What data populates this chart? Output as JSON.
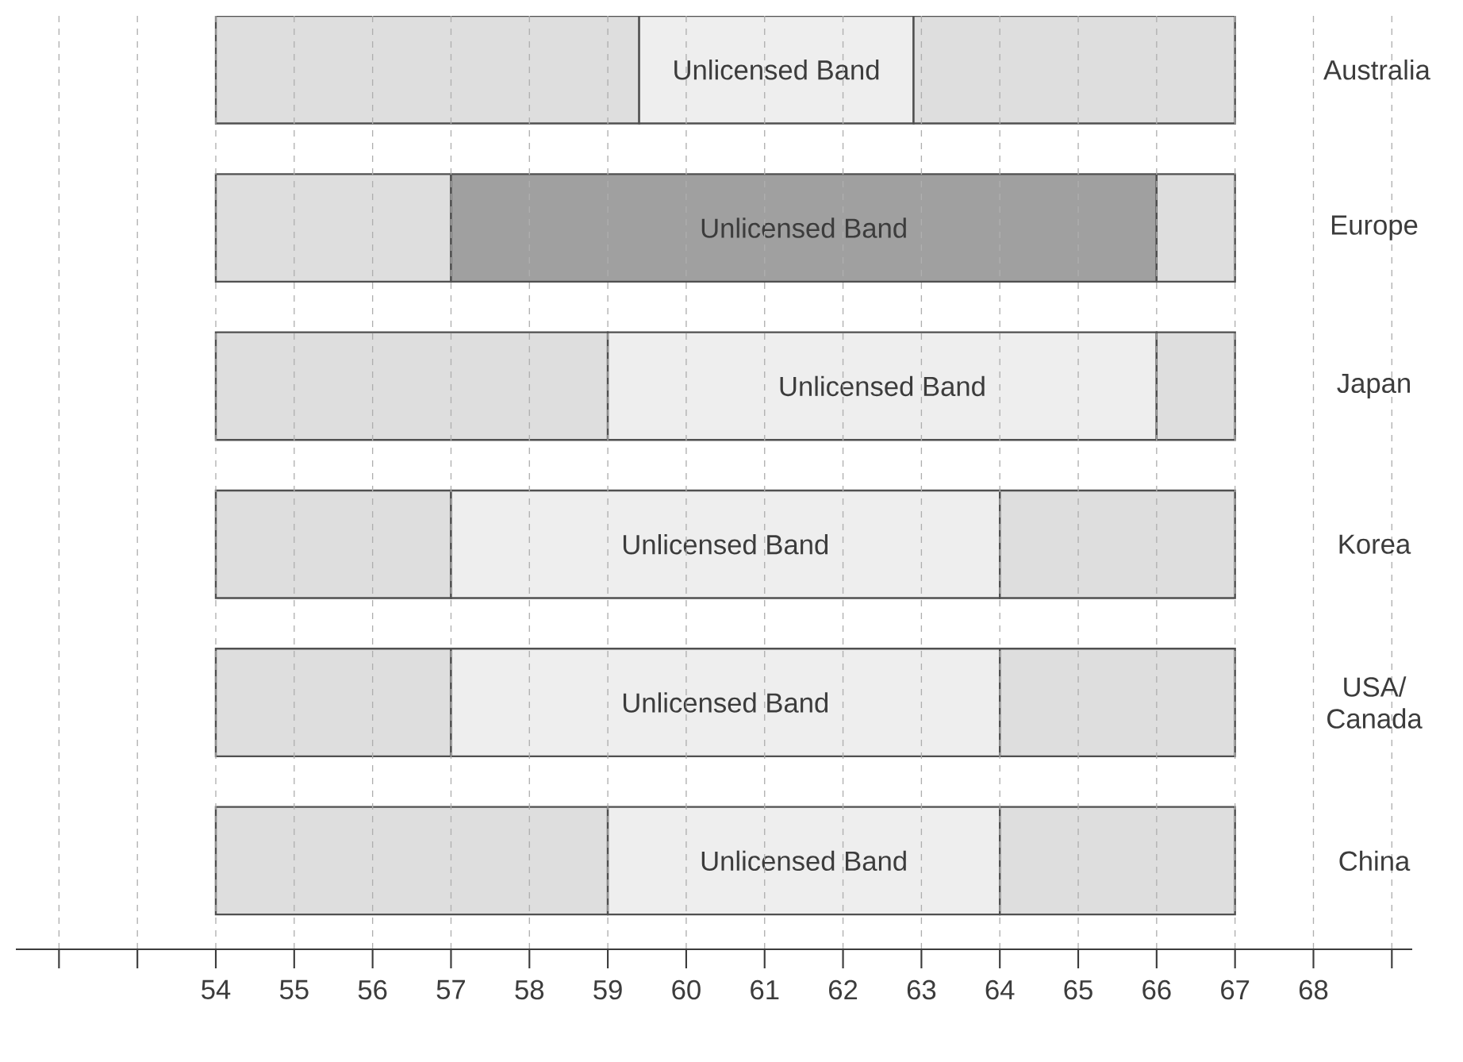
{
  "chart_data": {
    "type": "bar",
    "orientation": "horizontal",
    "categories": [
      "Australia",
      "Europe",
      "Japan",
      "Korea",
      "USA/ Canada",
      "China"
    ],
    "series": [
      {
        "color": "#dedede",
        "base": [
          54,
          54,
          54,
          54,
          54,
          54
        ],
        "values": [
          5.4,
          3,
          5,
          3,
          3,
          5
        ]
      },
      {
        "base": [
          59.4,
          57,
          59,
          57,
          57,
          59
        ],
        "colors": [
          "#eeeeee",
          "#a0a0a0",
          "#eeeeee",
          "#eeeeee",
          "#eeeeee",
          "#eeeeee"
        ],
        "values": [
          3.5,
          9,
          7,
          7,
          7,
          5
        ],
        "value_labels": [
          "Unlicensed Band",
          "Unlicensed Band",
          "Unlicensed Band",
          "Unlicensed Band",
          "Unlicensed Band",
          "Unlicensed Band"
        ]
      },
      {
        "color": "#dedede",
        "base": [
          62.9,
          66,
          66,
          64,
          64,
          64
        ],
        "values": [
          4.1,
          1,
          1,
          3,
          3,
          3
        ]
      }
    ],
    "xlim": [
      51.45,
      69.26
    ],
    "xticks": [
      {
        "value": 52,
        "label": null
      },
      {
        "value": 53,
        "label": null
      },
      54,
      55,
      56,
      57,
      58,
      59,
      60,
      61,
      62,
      63,
      64,
      65,
      66,
      67,
      68,
      {
        "value": 69,
        "label": null
      }
    ],
    "grid": "x"
  }
}
